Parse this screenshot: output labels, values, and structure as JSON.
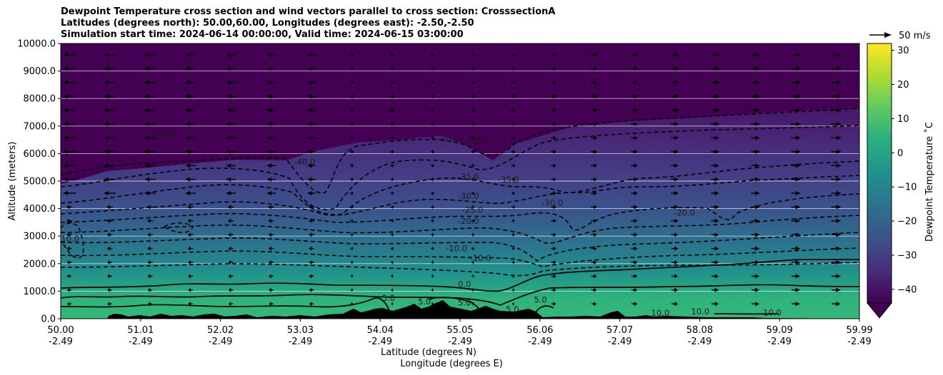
{
  "chart_data": {
    "type": "contour",
    "title_lines": [
      "Dewpoint Temperature cross section and wind vectors parallel to cross section: CrosssectionA",
      "Latitudes (degrees north): 50.00,60.00, Longitudes (degrees east): -2.50,-2.50",
      "Simulation start time: 2024-06-14 00:00:00, Valid time: 2024-06-15 03:00:00"
    ],
    "xlabel_lines": [
      "Latitude (degrees N)",
      "Longitude (degrees E)"
    ],
    "ylabel": "Altitude (meters)",
    "x_ticks": [
      {
        "lat": "50.00",
        "lon": "-2.49"
      },
      {
        "lat": "51.01",
        "lon": "-2.49"
      },
      {
        "lat": "52.02",
        "lon": "-2.49"
      },
      {
        "lat": "53.03",
        "lon": "-2.49"
      },
      {
        "lat": "54.04",
        "lon": "-2.49"
      },
      {
        "lat": "55.05",
        "lon": "-2.49"
      },
      {
        "lat": "56.06",
        "lon": "-2.49"
      },
      {
        "lat": "57.07",
        "lon": "-2.49"
      },
      {
        "lat": "58.08",
        "lon": "-2.49"
      },
      {
        "lat": "59.09",
        "lon": "-2.49"
      },
      {
        "lat": "59.99",
        "lon": "-2.49"
      }
    ],
    "xlim": [
      50.0,
      59.99
    ],
    "ylim": [
      0,
      10000
    ],
    "y_ticks": [
      "0.0",
      "1000.0",
      "2000.0",
      "3000.0",
      "4000.0",
      "5000.0",
      "6000.0",
      "7000.0",
      "8000.0",
      "9000.0",
      "10000.0"
    ],
    "y_tick_values": [
      0,
      1000,
      2000,
      3000,
      4000,
      5000,
      6000,
      7000,
      8000,
      9000,
      10000
    ],
    "grid": "horizontal",
    "colorbar": {
      "label": "Dewpoint Temperature ˚C",
      "ticks": [
        "−40",
        "−30",
        "−20",
        "−10",
        "0",
        "10",
        "20",
        "30"
      ],
      "tick_values": [
        -40,
        -30,
        -20,
        -10,
        0,
        10,
        20,
        30
      ],
      "range": [
        -44,
        32
      ],
      "extend": "min",
      "colormap": "viridis"
    },
    "quiver_key": "50 m/s",
    "contour_labels": [
      {
        "text": "-40.0",
        "x": 51.3,
        "y": 6600
      },
      {
        "text": "-40.0",
        "x": 53.05,
        "y": 5600
      },
      {
        "text": "-40.0",
        "x": 54.85,
        "y": 6450
      },
      {
        "text": "-40.0",
        "x": 55.25,
        "y": 6400
      },
      {
        "text": "-35.0",
        "x": 55.1,
        "y": 5050
      },
      {
        "text": "-35.0",
        "x": 55.6,
        "y": 4950
      },
      {
        "text": "-30.0",
        "x": 55.1,
        "y": 4350
      },
      {
        "text": "-30.0",
        "x": 56.15,
        "y": 4100
      },
      {
        "text": "-25.0",
        "x": 55.15,
        "y": 3850
      },
      {
        "text": "-20.0",
        "x": 55.1,
        "y": 3450
      },
      {
        "text": "-20.0",
        "x": 57.8,
        "y": 3750
      },
      {
        "text": "-10.0",
        "x": 54.95,
        "y": 2450
      },
      {
        "text": "-10.0",
        "x": 55.25,
        "y": 2100
      },
      {
        "text": "-10.0",
        "x": 50.1,
        "y": 2800
      },
      {
        "text": "0.0",
        "x": 55.05,
        "y": 1150
      },
      {
        "text": "5.0",
        "x": 54.1,
        "y": 650
      },
      {
        "text": "5.0",
        "x": 54.55,
        "y": 520
      },
      {
        "text": "5.0",
        "x": 55.05,
        "y": 480
      },
      {
        "text": "5.0",
        "x": 55.65,
        "y": 230
      },
      {
        "text": "5.0",
        "x": 56.0,
        "y": 580
      },
      {
        "text": "10.0",
        "x": 57.5,
        "y": 100
      },
      {
        "text": "10.0",
        "x": 58.0,
        "y": 150
      },
      {
        "text": "10.0",
        "x": 58.9,
        "y": 120
      }
    ]
  }
}
